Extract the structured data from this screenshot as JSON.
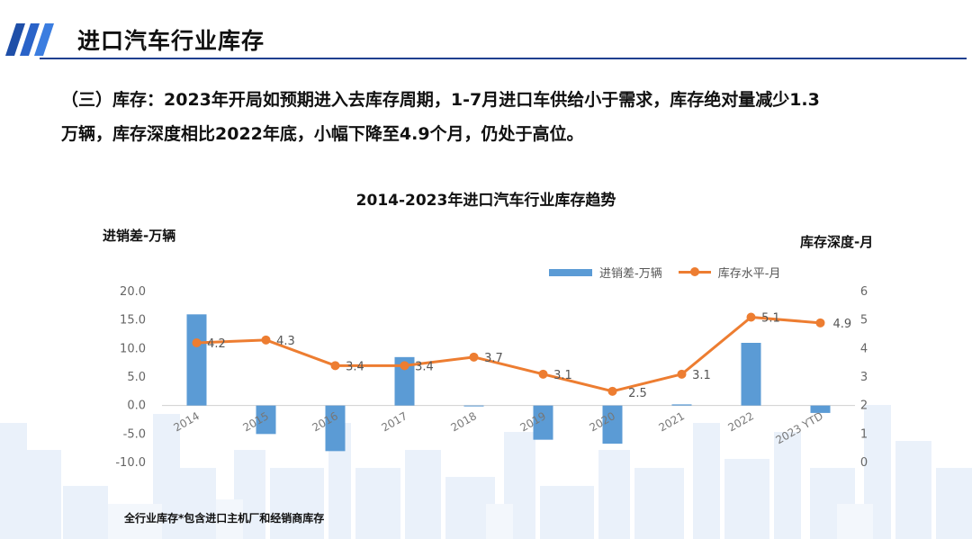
{
  "header": {
    "title": "进口汽车行业库存"
  },
  "summary": {
    "line1": "（三）库存：2023年开局如预期进入去库存周期，1-7月进口车供给小于需求，库存绝对量减少1.3",
    "line2": "万辆，库存深度相比2022年底，小幅下降至4.9个月，仍处于高位。"
  },
  "chart_data": {
    "type": "bar",
    "title": "2014-2023年进口汽车行业库存趋势",
    "ylabel_left": "进销差-万辆",
    "ylabel_right": "库存深度-月",
    "categories": [
      "2014",
      "2015",
      "2016",
      "2017",
      "2018",
      "2019",
      "2020",
      "2021",
      "2022",
      "2023 YTD"
    ],
    "left_axis": {
      "min": -10,
      "max": 20,
      "ticks": [
        "-10.0",
        "-5.0",
        "0.0",
        "5.0",
        "10.0",
        "15.0",
        "20.0"
      ]
    },
    "right_axis": {
      "min": 0,
      "max": 6,
      "ticks": [
        "0",
        "1",
        "2",
        "3",
        "4",
        "5",
        "6"
      ]
    },
    "series": [
      {
        "name": "进销差-万辆",
        "kind": "bar",
        "axis": "left",
        "color": "#5b9bd5",
        "values": [
          16.0,
          -5.0,
          -8.0,
          8.5,
          0.0,
          -6.0,
          -6.7,
          0.2,
          11.0,
          -1.3
        ]
      },
      {
        "name": "库存水平-月",
        "kind": "line",
        "axis": "right",
        "color": "#ed7d31",
        "values": [
          4.2,
          4.3,
          3.4,
          3.4,
          3.7,
          3.1,
          2.5,
          3.1,
          5.1,
          4.9
        ],
        "labels": [
          "4.2",
          "4.3",
          "3.4",
          "3.4",
          "3.7",
          "3.1",
          "2.5",
          "3.1",
          "5.1",
          "4.9"
        ]
      }
    ],
    "legend": "top-right",
    "grid": false
  },
  "footnote": "全行业库存*包含进口主机厂和经销商库存"
}
